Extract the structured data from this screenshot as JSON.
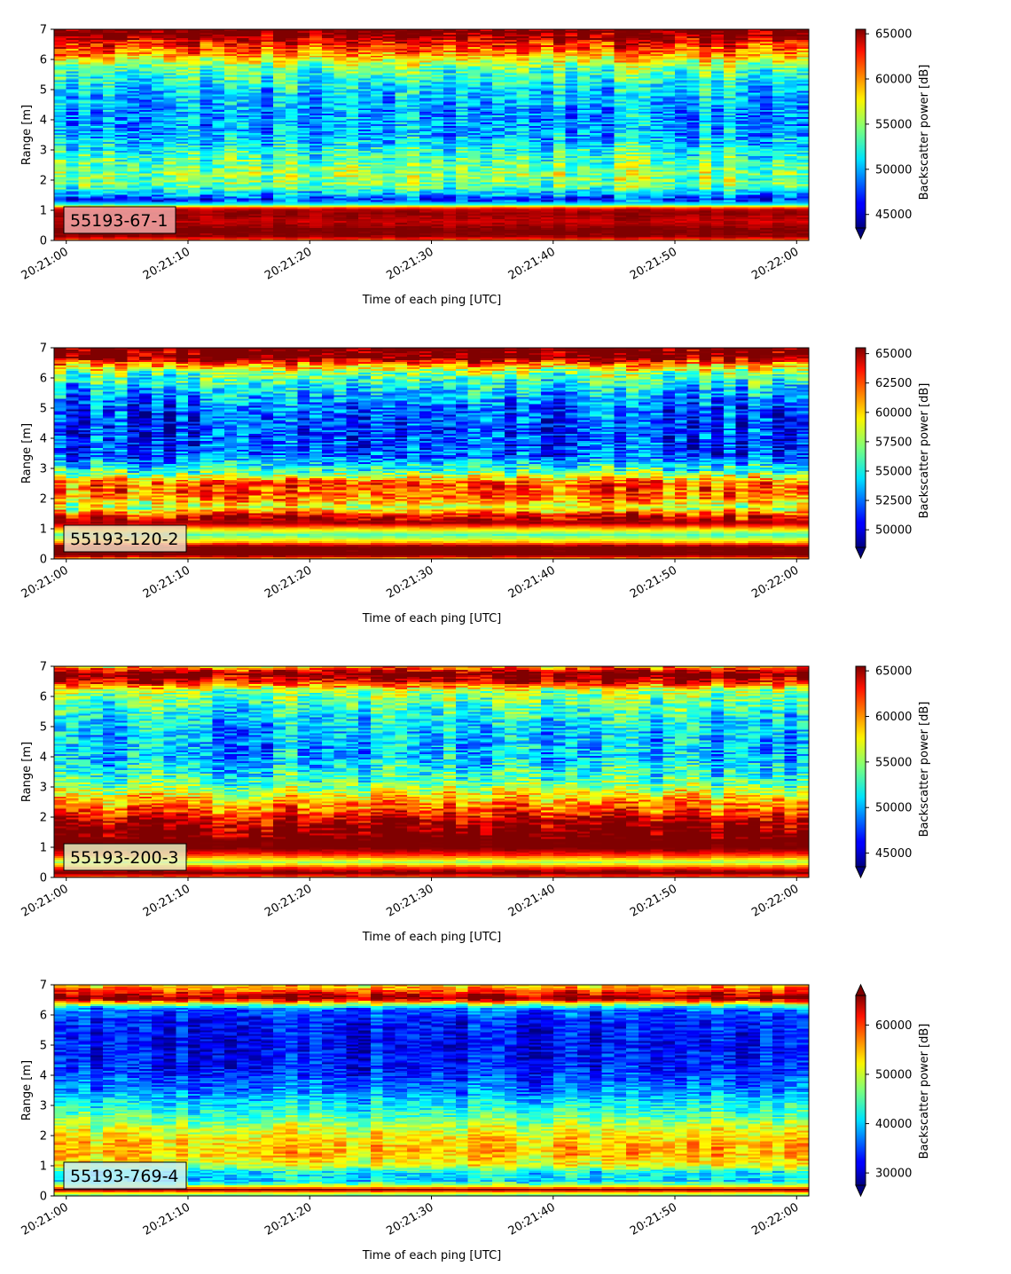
{
  "chart_data": [
    {
      "type": "heatmap",
      "panel_label": "55193-67-1",
      "xlabel": "Time of each ping [UTC]",
      "ylabel": "Range [m]",
      "colorbar_label": "Backscatter power [dB]",
      "x_tick_labels": [
        "20:21:00",
        "20:21:10",
        "20:21:20",
        "20:21:30",
        "20:21:40",
        "20:21:50",
        "20:22:00"
      ],
      "y_ticks": [
        0,
        1,
        2,
        3,
        4,
        5,
        6,
        7
      ],
      "xlim_seconds": [
        -1,
        61
      ],
      "ylim": [
        0,
        7
      ],
      "clim": [
        43500,
        65500
      ],
      "colorbar_ticks": [
        45000,
        50000,
        55000,
        60000,
        65000
      ],
      "colorbar_extend": "min",
      "colormap": "jet",
      "label_box_color": "#f0a8a8",
      "range_profile": [
        [
          0.0,
          60000
        ],
        [
          0.12,
          65000
        ],
        [
          0.3,
          66000
        ],
        [
          0.6,
          64000
        ],
        [
          0.9,
          65000
        ],
        [
          1.05,
          64000
        ],
        [
          1.2,
          52000
        ],
        [
          1.35,
          47000
        ],
        [
          1.5,
          50000
        ],
        [
          1.8,
          54000
        ],
        [
          2.2,
          55000
        ],
        [
          2.8,
          53000
        ],
        [
          3.5,
          50000
        ],
        [
          4.2,
          49500
        ],
        [
          5.0,
          51000
        ],
        [
          5.7,
          54000
        ],
        [
          6.2,
          60000
        ],
        [
          6.6,
          63000
        ],
        [
          6.8,
          66000
        ],
        [
          7.0,
          66000
        ]
      ],
      "noise": 3400
    },
    {
      "type": "heatmap",
      "panel_label": "55193-120-2",
      "xlabel": "Time of each ping [UTC]",
      "ylabel": "Range [m]",
      "colorbar_label": "Backscatter power [dB]",
      "x_tick_labels": [
        "20:21:00",
        "20:21:10",
        "20:21:20",
        "20:21:30",
        "20:21:40",
        "20:21:50",
        "20:22:00"
      ],
      "y_ticks": [
        0,
        1,
        2,
        3,
        4,
        5,
        6,
        7
      ],
      "xlim_seconds": [
        -1,
        61
      ],
      "ylim": [
        0,
        7
      ],
      "clim": [
        48500,
        65500
      ],
      "colorbar_ticks": [
        50000,
        52500,
        55000,
        57500,
        60000,
        62500,
        65000
      ],
      "colorbar_extend": "min",
      "colormap": "jet",
      "label_box_color": "#f0d8c0",
      "range_profile": [
        [
          0.0,
          60000
        ],
        [
          0.12,
          66000
        ],
        [
          0.4,
          66000
        ],
        [
          0.55,
          60000
        ],
        [
          0.8,
          56000
        ],
        [
          1.0,
          60000
        ],
        [
          1.2,
          65000
        ],
        [
          1.45,
          63000
        ],
        [
          1.7,
          58000
        ],
        [
          2.0,
          61000
        ],
        [
          2.5,
          62000
        ],
        [
          2.9,
          56000
        ],
        [
          3.4,
          52000
        ],
        [
          4.2,
          51500
        ],
        [
          5.0,
          52000
        ],
        [
          5.6,
          54000
        ],
        [
          6.2,
          57000
        ],
        [
          6.5,
          62000
        ],
        [
          6.7,
          66000
        ],
        [
          7.0,
          66000
        ]
      ],
      "noise": 3000
    },
    {
      "type": "heatmap",
      "panel_label": "55193-200-3",
      "xlabel": "Time of each ping [UTC]",
      "ylabel": "Range [m]",
      "colorbar_label": "Backscatter power [dB]",
      "x_tick_labels": [
        "20:21:00",
        "20:21:10",
        "20:21:20",
        "20:21:30",
        "20:21:40",
        "20:21:50",
        "20:22:00"
      ],
      "y_ticks": [
        0,
        1,
        2,
        3,
        4,
        5,
        6,
        7
      ],
      "xlim_seconds": [
        -1,
        61
      ],
      "ylim": [
        0,
        7
      ],
      "clim": [
        43500,
        65500
      ],
      "colorbar_ticks": [
        45000,
        50000,
        55000,
        60000,
        65000
      ],
      "colorbar_extend": "min",
      "colormap": "jet",
      "label_box_color": "#e8f0c0",
      "range_profile": [
        [
          0.0,
          60000
        ],
        [
          0.15,
          66000
        ],
        [
          0.3,
          62000
        ],
        [
          0.5,
          55000
        ],
        [
          0.75,
          62000
        ],
        [
          1.0,
          66000
        ],
        [
          1.5,
          66000
        ],
        [
          1.85,
          64000
        ],
        [
          2.2,
          61000
        ],
        [
          2.6,
          58000
        ],
        [
          3.2,
          53000
        ],
        [
          4.0,
          50000
        ],
        [
          4.8,
          50000
        ],
        [
          5.5,
          52000
        ],
        [
          6.2,
          55000
        ],
        [
          6.5,
          63000
        ],
        [
          6.75,
          66000
        ],
        [
          6.95,
          60000
        ],
        [
          7.0,
          58000
        ]
      ],
      "noise": 3600
    },
    {
      "type": "heatmap",
      "panel_label": "55193-769-4",
      "xlabel": "Time of each ping [UTC]",
      "ylabel": "Range [m]",
      "colorbar_label": "Backscatter power [dB]",
      "x_tick_labels": [
        "20:21:00",
        "20:21:10",
        "20:21:20",
        "20:21:30",
        "20:21:40",
        "20:21:50",
        "20:22:00"
      ],
      "y_ticks": [
        0,
        1,
        2,
        3,
        4,
        5,
        6,
        7
      ],
      "xlim_seconds": [
        -1,
        61
      ],
      "ylim": [
        0,
        7
      ],
      "clim": [
        27500,
        66000
      ],
      "colorbar_ticks": [
        30000,
        40000,
        50000,
        60000
      ],
      "colorbar_extend": "both",
      "colormap": "jet",
      "label_box_color": "#c8ecf8",
      "range_profile": [
        [
          0.0,
          45000
        ],
        [
          0.1,
          52000
        ],
        [
          0.2,
          66000
        ],
        [
          0.3,
          52000
        ],
        [
          0.5,
          40000
        ],
        [
          0.8,
          42000
        ],
        [
          1.0,
          50000
        ],
        [
          1.4,
          54000
        ],
        [
          1.8,
          53000
        ],
        [
          2.2,
          50000
        ],
        [
          2.6,
          45000
        ],
        [
          3.0,
          42000
        ],
        [
          3.5,
          37000
        ],
        [
          4.2,
          33000
        ],
        [
          5.0,
          32000
        ],
        [
          5.8,
          33000
        ],
        [
          6.2,
          36000
        ],
        [
          6.4,
          52000
        ],
        [
          6.55,
          66000
        ],
        [
          6.75,
          60000
        ],
        [
          7.0,
          52000
        ]
      ],
      "noise": 4500
    }
  ]
}
